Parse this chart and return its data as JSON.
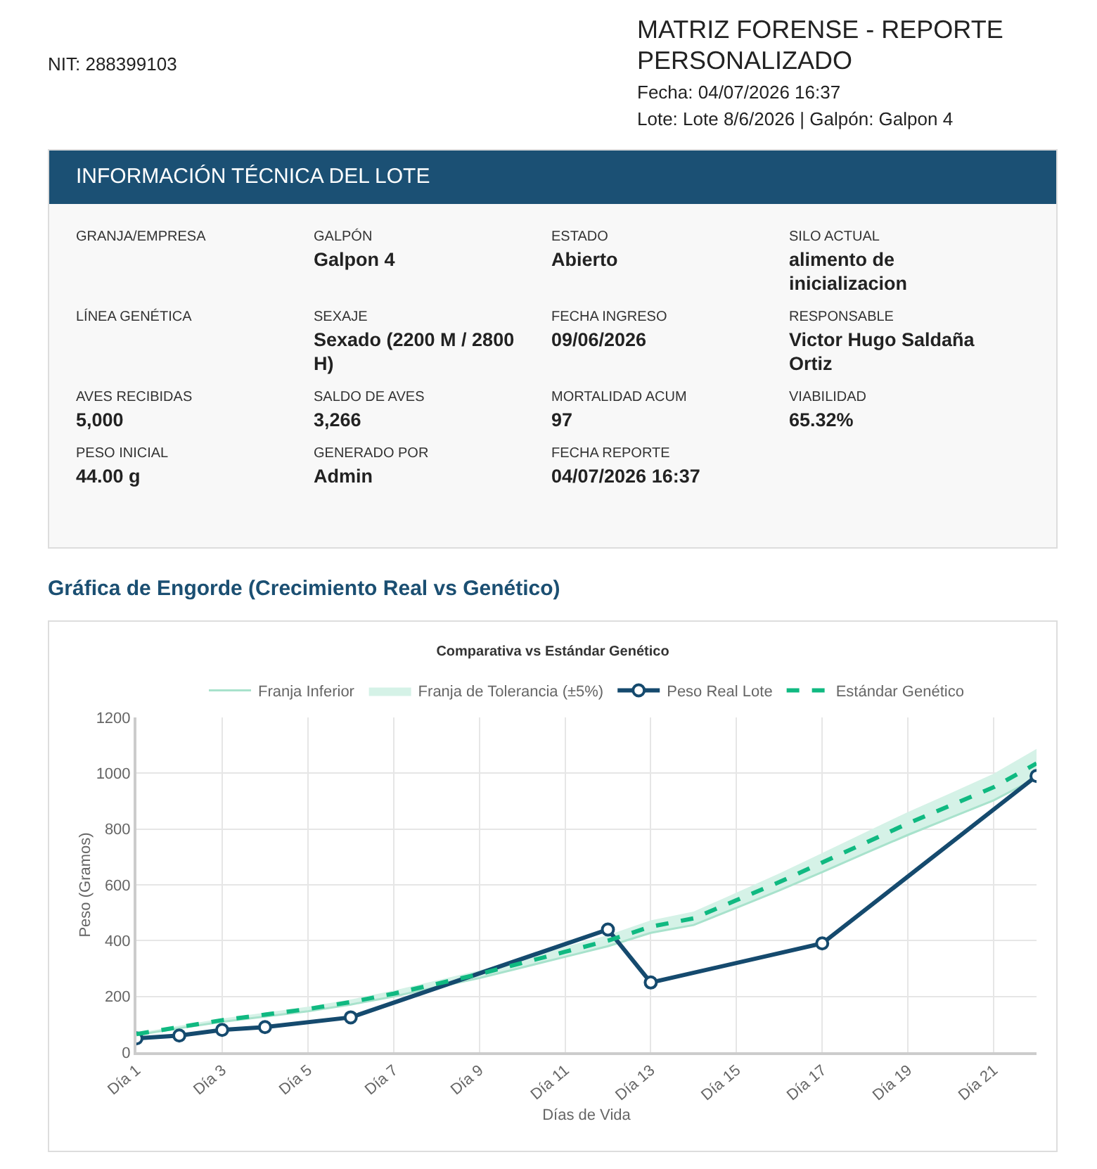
{
  "chart_data": [
    {
      "type": "other",
      "title": "MATRIZ FORENSE - REPORTE PERSONALIZADO",
      "annotations": [
        "NIT: 288399103",
        "Fecha: 04/07/2026 16:37",
        "Lote: Lote 8/6/2026 | Galpón: Galpon 4"
      ]
    },
    {
      "type": "other",
      "title": "INFORMACIÓN TÉCNICA DEL LOTE",
      "annotations": [
        "GRANJA/EMPRESA",
        null,
        "GALPÓN",
        "Galpon 4",
        "ESTADO",
        "Abierto",
        "SILO ACTUAL",
        "alimento de inicializacion",
        "LÍNEA GENÉTICA",
        null,
        "SEXAJE",
        "Sexado (2200 M / 2800 H)",
        "FECHA INGRESO",
        "09/06/2026",
        "RESPONSABLE",
        "Victor Hugo Saldaña Ortiz",
        "AVES RECIBIDAS",
        "5,000",
        "SALDO DE AVES",
        "3,266",
        "MORTALIDAD ACUM",
        "97",
        "VIABILIDAD",
        "65.32%",
        "PESO INICIAL",
        "44.00 g",
        "GENERADO POR",
        "Admin",
        "FECHA REPORTE",
        "04/07/2026 16:37"
      ]
    },
    {
      "type": "line",
      "subtitle": "Gráfica de Engorde (Crecimiento Real vs Genético)",
      "title": "Comparativa vs Estándar Genético",
      "xlabel": "Días de Vida",
      "ylabel": "Peso (Gramos)",
      "categories": [
        "Día 1",
        null,
        "Día 3",
        null,
        "Día 5",
        null,
        "Día 7",
        null,
        "Día 9",
        null,
        "Día 11",
        null,
        "Día 13",
        null,
        "Día 15",
        null,
        "Día 17",
        null,
        "Día 19",
        null,
        "Día 21",
        null
      ],
      "series": [
        {
          "name": "Franja Inferior",
          "type": "line",
          "color": "#a8e2cc",
          "values": [
            62,
            86,
            109,
            128,
            147,
            171,
            200,
            233,
            266,
            304,
            342,
            380,
            428,
            456,
            518,
            580,
            646,
            713,
            779,
            841,
            903,
            983
          ]
        },
        {
          "name": "Franja de Tolerancia (±5%)",
          "type": "area",
          "color": "#d5f2e7",
          "values": [
            68,
            95,
            121,
            142,
            163,
            189,
            221,
            257,
            294,
            336,
            378,
            420,
            473,
            504,
            572,
            641,
            714,
            788,
            861,
            929,
            998,
            1087
          ]
        },
        {
          "name": "Peso Real Lote",
          "type": "line",
          "color": "#154a6e",
          "marker": "circle",
          "line_style": "solid",
          "values": [
            50,
            60,
            80,
            90,
            null,
            125,
            null,
            null,
            null,
            null,
            null,
            440,
            250,
            null,
            null,
            null,
            390,
            null,
            null,
            null,
            null,
            990
          ]
        },
        {
          "name": "Estándar Genético",
          "type": "line",
          "color": "#10b981",
          "marker": "none",
          "line_style": "dashed",
          "values": [
            65,
            90,
            115,
            135,
            155,
            180,
            210,
            245,
            280,
            320,
            360,
            400,
            450,
            480,
            545,
            610,
            680,
            750,
            820,
            885,
            950,
            1035
          ]
        }
      ],
      "ylim": [
        0,
        1200
      ],
      "yticks": [
        0,
        200,
        400,
        600,
        800,
        1000,
        1200
      ],
      "grid": true,
      "legend": "top"
    }
  ]
}
